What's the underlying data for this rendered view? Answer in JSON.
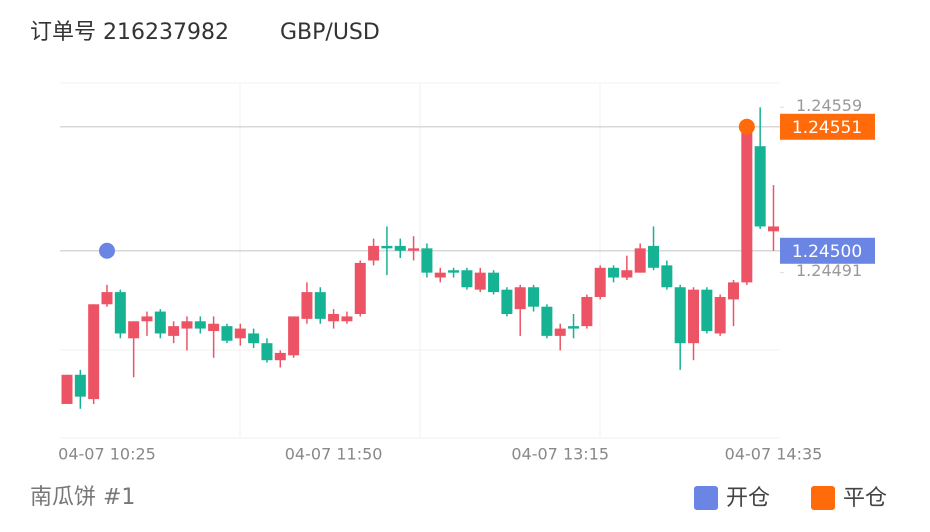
{
  "chart_data": {
    "type": "candlestick",
    "title": "订单号 216237982",
    "subtitle": "GBP/USD",
    "footer": "南瓜饼 #1",
    "categories": [
      null,
      null,
      null,
      "04-07 10:25",
      null,
      null,
      null,
      null,
      null,
      null,
      null,
      null,
      null,
      null,
      null,
      null,
      null,
      null,
      null,
      null,
      "04-07 11:50",
      null,
      null,
      null,
      null,
      null,
      null,
      null,
      null,
      null,
      null,
      null,
      null,
      null,
      null,
      null,
      null,
      "04-07 13:15",
      null,
      null,
      null,
      null,
      null,
      null,
      null,
      null,
      null,
      null,
      null,
      null,
      null,
      null,
      null,
      "04-07 14:35"
    ],
    "open": [
      1.24437,
      1.24449,
      1.24439,
      1.24478,
      1.24483,
      1.24464,
      1.24471,
      1.24475,
      1.24465,
      1.24468,
      1.24471,
      1.24467,
      1.24469,
      1.24464,
      1.24466,
      1.24462,
      1.24455,
      1.24457,
      1.24472,
      1.24483,
      1.24471,
      1.24471,
      1.24474,
      1.24496,
      1.24502,
      1.24502,
      1.245,
      1.24501,
      1.24489,
      1.24492,
      1.24492,
      1.24484,
      1.24491,
      1.24484,
      1.24476,
      1.24485,
      1.24477,
      1.24465,
      1.24469,
      1.24469,
      1.24481,
      1.24493,
      1.24489,
      1.24491,
      1.24502,
      1.24494,
      1.24485,
      1.24462,
      1.24484,
      1.24466,
      1.2448,
      1.24487,
      1.24543,
      1.24508
    ],
    "high": [
      1.24449,
      1.24451,
      1.24478,
      1.24486,
      1.24484,
      1.24471,
      1.24475,
      1.24476,
      1.24471,
      1.24473,
      1.24473,
      1.24473,
      1.2447,
      1.2447,
      1.24468,
      1.24464,
      1.24459,
      1.24473,
      1.24487,
      1.24485,
      1.24476,
      1.24475,
      1.24496,
      1.24505,
      1.2451,
      1.24505,
      1.24506,
      1.24503,
      1.24493,
      1.24493,
      1.24493,
      1.24493,
      1.24492,
      1.24485,
      1.24486,
      1.24486,
      1.24478,
      1.2447,
      1.24474,
      1.24482,
      1.24494,
      1.24494,
      1.24498,
      1.24503,
      1.2451,
      1.24496,
      1.24486,
      1.24485,
      1.24485,
      1.24482,
      1.24488,
      1.24552,
      1.24559,
      1.24527
    ],
    "low": [
      1.24437,
      1.24435,
      1.24437,
      1.24477,
      1.24464,
      1.24448,
      1.24465,
      1.24464,
      1.24462,
      1.24459,
      1.24466,
      1.24456,
      1.24462,
      1.24461,
      1.2446,
      1.24454,
      1.24452,
      1.24456,
      1.2447,
      1.2447,
      1.24468,
      1.2447,
      1.24473,
      1.24494,
      1.2449,
      1.24497,
      1.24496,
      1.24489,
      1.24487,
      1.24489,
      1.24484,
      1.24483,
      1.24482,
      1.24473,
      1.24465,
      1.24475,
      1.24464,
      1.24459,
      1.24464,
      1.24468,
      1.2448,
      1.24487,
      1.24488,
      1.24491,
      1.24492,
      1.24484,
      1.24451,
      1.24455,
      1.24466,
      1.24465,
      1.24469,
      1.24486,
      1.24509,
      1.245
    ],
    "close": [
      1.24449,
      1.2444,
      1.24478,
      1.24483,
      1.24466,
      1.24471,
      1.24473,
      1.24466,
      1.24469,
      1.24471,
      1.24468,
      1.2447,
      1.24463,
      1.24468,
      1.24462,
      1.24455,
      1.24458,
      1.24473,
      1.24483,
      1.24472,
      1.24474,
      1.24473,
      1.24495,
      1.24502,
      1.24501,
      1.245,
      1.24501,
      1.24491,
      1.24491,
      1.24491,
      1.24485,
      1.24491,
      1.24483,
      1.24474,
      1.24485,
      1.24477,
      1.24465,
      1.24468,
      1.24468,
      1.24481,
      1.24493,
      1.24489,
      1.24492,
      1.24501,
      1.24493,
      1.24485,
      1.24462,
      1.24484,
      1.24467,
      1.24481,
      1.24487,
      1.24551,
      1.2451,
      1.2451
    ],
    "up_color": "#ec5466",
    "down_color": "#16b294",
    "ylim": [
      1.24423,
      1.24569
    ],
    "yticks": [
      1.24559,
      1.24491
    ],
    "markers": [
      {
        "name": "开仓",
        "index": 3,
        "value": 1.245,
        "label": "1.24500",
        "color": "#6a85e3"
      },
      {
        "name": "平仓",
        "index": 51,
        "value": 1.24551,
        "label": "1.24551",
        "color": "#ff6a0a"
      }
    ]
  }
}
